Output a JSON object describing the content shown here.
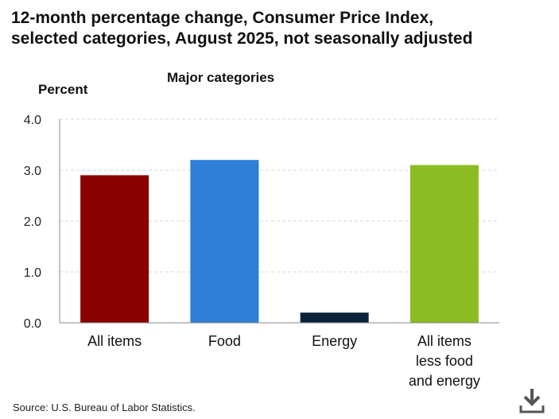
{
  "title_lines": [
    "12-month percentage change, Consumer Price Index,",
    "selected categories, August 2025, not seasonally adjusted"
  ],
  "source": "Source: U.S. Bureau of Labor Statistics.",
  "download_icon": "download-icon",
  "chart_data": {
    "type": "bar",
    "title": "12-month percentage change, Consumer Price Index, selected categories, August 2025, not seasonally adjusted",
    "subtitle": "Major categories",
    "ylabel": "Percent",
    "xlabel": "",
    "ylim": [
      0,
      4.0
    ],
    "yticks": [
      "0.0",
      "1.0",
      "2.0",
      "3.0",
      "4.0"
    ],
    "grid": true,
    "categories": [
      [
        "All items"
      ],
      [
        "Food"
      ],
      [
        "Energy"
      ],
      [
        "All items",
        "less food",
        "and energy"
      ]
    ],
    "values": [
      2.9,
      3.2,
      0.2,
      3.1
    ],
    "colors": [
      "#8b0000",
      "#2f7ed8",
      "#0d233a",
      "#8bbc21"
    ]
  }
}
